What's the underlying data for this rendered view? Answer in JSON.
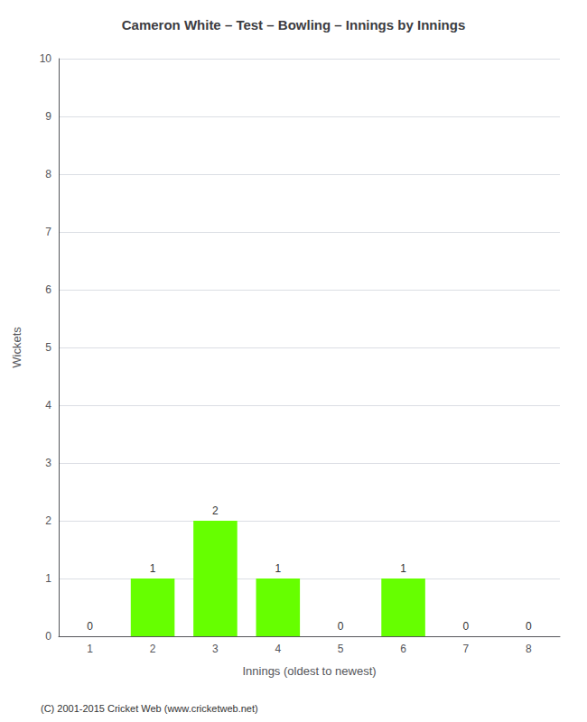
{
  "chart_data": {
    "type": "bar",
    "title": "Cameron White – Test – Bowling – Innings by Innings",
    "x_label": "Innings (oldest to newest)",
    "y_label": "Wickets",
    "categories": [
      "1",
      "2",
      "3",
      "4",
      "5",
      "6",
      "7",
      "8"
    ],
    "values": [
      0,
      1,
      2,
      1,
      0,
      1,
      0,
      0
    ],
    "color": "#66ff00",
    "ylim": [
      0,
      10
    ],
    "yticks": [
      0,
      1,
      2,
      3,
      4,
      5,
      6,
      7,
      8,
      9,
      10
    ],
    "grid": true,
    "data_labels": true,
    "annotations": [
      "(C) 2001-2015 Cricket Web (www.cricketweb.net)"
    ]
  }
}
